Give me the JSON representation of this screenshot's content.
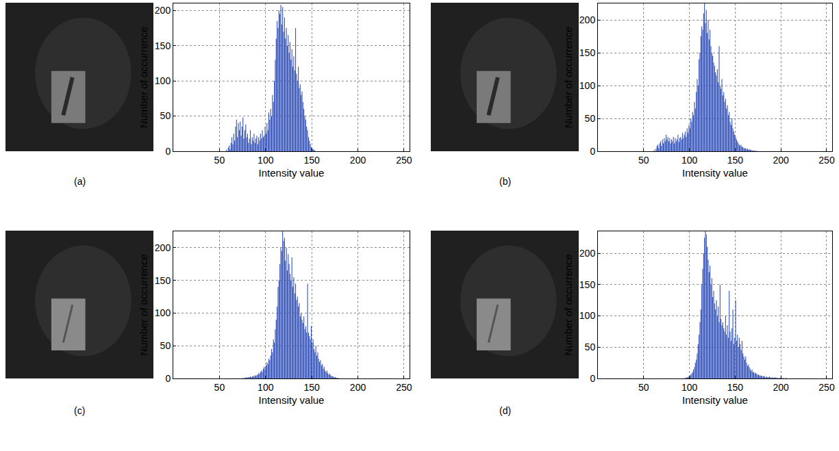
{
  "chart_data": [
    {
      "type": "histogram",
      "title": "(a)",
      "xlabel": "Intensity value",
      "ylabel": "Number of occurrence",
      "color": "#2f4eb8",
      "grid": true,
      "xlim": [
        0,
        256
      ],
      "xticks": [
        50,
        100,
        150,
        200,
        250
      ],
      "ylim": [
        0,
        210
      ],
      "yticks": [
        0,
        50,
        100,
        150,
        200
      ],
      "bins": [
        55,
        56,
        57,
        58,
        59,
        60,
        61,
        62,
        63,
        64,
        65,
        66,
        67,
        68,
        69,
        70,
        71,
        72,
        73,
        74,
        75,
        76,
        77,
        78,
        79,
        80,
        81,
        82,
        83,
        84,
        85,
        86,
        87,
        88,
        89,
        90,
        91,
        92,
        93,
        94,
        95,
        96,
        97,
        98,
        99,
        100,
        101,
        102,
        103,
        104,
        105,
        106,
        107,
        108,
        109,
        110,
        111,
        112,
        113,
        114,
        115,
        116,
        117,
        118,
        119,
        120,
        121,
        122,
        123,
        124,
        125,
        126,
        127,
        128,
        129,
        130,
        131,
        132,
        133,
        134,
        135,
        136,
        137,
        138,
        139,
        140,
        141,
        142,
        143,
        144,
        145,
        146,
        147,
        148,
        149,
        150,
        151,
        152,
        153,
        154,
        155,
        156
      ],
      "counts": [
        0,
        0,
        2,
        0,
        5,
        8,
        3,
        12,
        20,
        10,
        25,
        15,
        35,
        45,
        20,
        40,
        30,
        42,
        22,
        35,
        48,
        18,
        30,
        38,
        20,
        25,
        12,
        18,
        30,
        10,
        20,
        15,
        25,
        12,
        18,
        22,
        10,
        20,
        15,
        25,
        18,
        30,
        20,
        22,
        35,
        25,
        40,
        30,
        55,
        45,
        60,
        50,
        80,
        70,
        100,
        130,
        160,
        185,
        175,
        200,
        195,
        208,
        180,
        205,
        170,
        190,
        160,
        175,
        150,
        165,
        140,
        155,
        130,
        145,
        120,
        135,
        115,
        175,
        110,
        100,
        120,
        90,
        95,
        80,
        85,
        70,
        60,
        50,
        45,
        35,
        30,
        20,
        15,
        10,
        6,
        4,
        3,
        2,
        1,
        0,
        0
      ]
    },
    {
      "type": "histogram",
      "title": "(b)",
      "xlabel": "Intensity value",
      "ylabel": "Number of occurrence",
      "color": "#2f4eb8",
      "grid": true,
      "xlim": [
        0,
        256
      ],
      "xticks": [
        50,
        100,
        150,
        200,
        250
      ],
      "ylim": [
        0,
        225
      ],
      "yticks": [
        0,
        50,
        100,
        150,
        200
      ],
      "bins": [
        60,
        61,
        62,
        63,
        64,
        65,
        66,
        67,
        68,
        69,
        70,
        71,
        72,
        73,
        74,
        75,
        76,
        77,
        78,
        79,
        80,
        81,
        82,
        83,
        84,
        85,
        86,
        87,
        88,
        89,
        90,
        91,
        92,
        93,
        94,
        95,
        96,
        97,
        98,
        99,
        100,
        101,
        102,
        103,
        104,
        105,
        106,
        107,
        108,
        109,
        110,
        111,
        112,
        113,
        114,
        115,
        116,
        117,
        118,
        119,
        120,
        121,
        122,
        123,
        124,
        125,
        126,
        127,
        128,
        129,
        130,
        131,
        132,
        133,
        134,
        135,
        136,
        137,
        138,
        139,
        140,
        141,
        142,
        143,
        144,
        145,
        146,
        147,
        148,
        149,
        150,
        151,
        152,
        153,
        154,
        155,
        156,
        157,
        158,
        159,
        160,
        161,
        162,
        163,
        164,
        165,
        166,
        167,
        168,
        169,
        170,
        171,
        172,
        173,
        174,
        175
      ],
      "counts": [
        0,
        2,
        0,
        4,
        8,
        10,
        5,
        12,
        15,
        8,
        18,
        12,
        20,
        15,
        25,
        18,
        22,
        15,
        20,
        12,
        18,
        15,
        22,
        12,
        20,
        15,
        18,
        25,
        14,
        20,
        22,
        18,
        28,
        20,
        25,
        30,
        22,
        35,
        28,
        40,
        35,
        50,
        45,
        60,
        55,
        75,
        65,
        90,
        110,
        100,
        140,
        150,
        175,
        190,
        185,
        210,
        225,
        195,
        215,
        180,
        200,
        170,
        185,
        160,
        150,
        145,
        135,
        130,
        120,
        115,
        125,
        105,
        160,
        100,
        95,
        110,
        85,
        90,
        75,
        80,
        65,
        70,
        55,
        60,
        45,
        40,
        50,
        35,
        30,
        25,
        22,
        18,
        15,
        12,
        10,
        8,
        10,
        7,
        6,
        5,
        4,
        5,
        3,
        4,
        2,
        3,
        2,
        2,
        1,
        1,
        1,
        1,
        0,
        1,
        0
      ]
    },
    {
      "type": "histogram",
      "title": "(c)",
      "xlabel": "Intensity value",
      "ylabel": "Number of occurrence",
      "color": "#2f4eb8",
      "grid": true,
      "xlim": [
        0,
        256
      ],
      "xticks": [
        50,
        100,
        150,
        200,
        250
      ],
      "ylim": [
        0,
        225
      ],
      "yticks": [
        0,
        50,
        100,
        150,
        200
      ],
      "bins": [
        75,
        76,
        77,
        78,
        79,
        80,
        81,
        82,
        83,
        84,
        85,
        86,
        87,
        88,
        89,
        90,
        91,
        92,
        93,
        94,
        95,
        96,
        97,
        98,
        99,
        100,
        101,
        102,
        103,
        104,
        105,
        106,
        107,
        108,
        109,
        110,
        111,
        112,
        113,
        114,
        115,
        116,
        117,
        118,
        119,
        120,
        121,
        122,
        123,
        124,
        125,
        126,
        127,
        128,
        129,
        130,
        131,
        132,
        133,
        134,
        135,
        136,
        137,
        138,
        139,
        140,
        141,
        142,
        143,
        144,
        145,
        146,
        147,
        148,
        149,
        150,
        151,
        152,
        153,
        154,
        155,
        156,
        157,
        158,
        159,
        160,
        161,
        162,
        163,
        164,
        165,
        166,
        167,
        168,
        169,
        170,
        171,
        172,
        173,
        174,
        175,
        176,
        177,
        178,
        179,
        180
      ],
      "counts": [
        1,
        0,
        1,
        1,
        2,
        1,
        2,
        2,
        3,
        2,
        3,
        4,
        3,
        5,
        4,
        5,
        6,
        8,
        7,
        10,
        12,
        10,
        15,
        18,
        14,
        20,
        25,
        22,
        30,
        28,
        35,
        45,
        40,
        60,
        55,
        75,
        90,
        110,
        140,
        150,
        175,
        200,
        195,
        225,
        210,
        215,
        180,
        200,
        165,
        190,
        175,
        160,
        150,
        185,
        140,
        155,
        130,
        145,
        120,
        125,
        110,
        115,
        95,
        100,
        90,
        85,
        95,
        75,
        80,
        70,
        145,
        70,
        65,
        60,
        80,
        55,
        60,
        45,
        40,
        50,
        35,
        40,
        30,
        25,
        28,
        20,
        22,
        15,
        18,
        12,
        10,
        12,
        8,
        6,
        7,
        5,
        4,
        3,
        3,
        2,
        2,
        1,
        1,
        1,
        0
      ]
    },
    {
      "type": "histogram",
      "title": "(d)",
      "xlabel": "Intensity value",
      "ylabel": "Number of occurrence",
      "color": "#2f4eb8",
      "grid": true,
      "xlim": [
        0,
        256
      ],
      "xticks": [
        50,
        100,
        150,
        200,
        250
      ],
      "ylim": [
        0,
        235
      ],
      "yticks": [
        0,
        50,
        100,
        150,
        200
      ],
      "bins": [
        95,
        96,
        97,
        98,
        99,
        100,
        101,
        102,
        103,
        104,
        105,
        106,
        107,
        108,
        109,
        110,
        111,
        112,
        113,
        114,
        115,
        116,
        117,
        118,
        119,
        120,
        121,
        122,
        123,
        124,
        125,
        126,
        127,
        128,
        129,
        130,
        131,
        132,
        133,
        134,
        135,
        136,
        137,
        138,
        139,
        140,
        141,
        142,
        143,
        144,
        145,
        146,
        147,
        148,
        149,
        150,
        151,
        152,
        153,
        154,
        155,
        156,
        157,
        158,
        159,
        160,
        161,
        162,
        163,
        164,
        165,
        166,
        167,
        168,
        169,
        170,
        171,
        172,
        173,
        174,
        175,
        176,
        177,
        178,
        179,
        180,
        181,
        182,
        183,
        184,
        185,
        186,
        187,
        188,
        189,
        190,
        191,
        192,
        193,
        194,
        195,
        196,
        197,
        198,
        199,
        200,
        201,
        202,
        203,
        204,
        205,
        206,
        207,
        208,
        209,
        210
      ],
      "counts": [
        1,
        1,
        2,
        2,
        3,
        4,
        6,
        8,
        10,
        14,
        18,
        25,
        30,
        40,
        55,
        70,
        90,
        110,
        150,
        175,
        200,
        225,
        235,
        230,
        210,
        190,
        170,
        180,
        150,
        160,
        130,
        140,
        120,
        110,
        125,
        100,
        115,
        90,
        150,
        95,
        85,
        90,
        80,
        75,
        100,
        70,
        85,
        65,
        140,
        75,
        60,
        80,
        110,
        55,
        65,
        125,
        60,
        70,
        50,
        65,
        55,
        45,
        60,
        40,
        35,
        30,
        35,
        25,
        20,
        22,
        18,
        15,
        12,
        14,
        10,
        10,
        8,
        9,
        7,
        6,
        6,
        5,
        5,
        4,
        4,
        3,
        4,
        3,
        2,
        3,
        2,
        2,
        3,
        2,
        1,
        2,
        1,
        1,
        2,
        1,
        1,
        1,
        0,
        1,
        1,
        1,
        0,
        1,
        0,
        0,
        1,
        0,
        0,
        0,
        0
      ]
    }
  ]
}
